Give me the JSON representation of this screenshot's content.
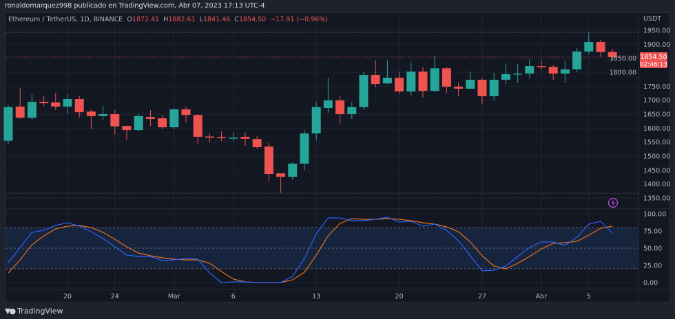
{
  "topbar": {
    "text": "ronaldomarquez998 publicado en TradingView.com, Abr 07, 2023 17:13 UTC-4"
  },
  "legend": {
    "symbol": "Ethereum / TetherUS, 1D, BINANCE",
    "o_label": "O",
    "o": "1872.41",
    "h_label": "H",
    "h": "1882.61",
    "l_label": "L",
    "l": "1841.46",
    "c_label": "C",
    "c": "1854.50",
    "change": "−17.91 (−0.96%)"
  },
  "colors": {
    "up": "#26a69a",
    "down": "#ef5350",
    "k_line": "#2962ff",
    "d_line": "#e8711a",
    "background": "#131722"
  },
  "price_axis": {
    "currency": "USDT",
    "labels": [
      "1950.00",
      "1900.00",
      "1850.00",
      "1800.00",
      "1750.00",
      "1700.00",
      "1650.00",
      "1600.00",
      "1550.00",
      "1500.00",
      "1450.00",
      "1400.00",
      "1350.00"
    ],
    "current_price": "1854.50",
    "countdown": "02:46:13"
  },
  "stoch_axis": {
    "labels": [
      "100.00",
      "75.00",
      "50.00",
      "25.00",
      "0.00"
    ]
  },
  "time_axis": {
    "labels": [
      "20",
      "24",
      "Mar",
      "6",
      "13",
      "20",
      "27",
      "Abr",
      "5"
    ]
  },
  "chart_data": {
    "type": "candlestick",
    "candles": [
      [
        1555,
        1682,
        1542,
        1675
      ],
      [
        1677,
        1743,
        1633,
        1637
      ],
      [
        1637,
        1721,
        1630,
        1694
      ],
      [
        1694,
        1714,
        1680,
        1689
      ],
      [
        1692,
        1726,
        1665,
        1677
      ],
      [
        1677,
        1721,
        1650,
        1704
      ],
      [
        1704,
        1716,
        1638,
        1657
      ],
      [
        1659,
        1667,
        1596,
        1643
      ],
      [
        1643,
        1680,
        1628,
        1650
      ],
      [
        1650,
        1665,
        1576,
        1606
      ],
      [
        1608,
        1608,
        1557,
        1593
      ],
      [
        1593,
        1652,
        1589,
        1643
      ],
      [
        1640,
        1665,
        1608,
        1633
      ],
      [
        1635,
        1647,
        1596,
        1603
      ],
      [
        1603,
        1670,
        1596,
        1667
      ],
      [
        1667,
        1677,
        1620,
        1647
      ],
      [
        1647,
        1650,
        1544,
        1569
      ],
      [
        1570,
        1581,
        1549,
        1566
      ],
      [
        1568,
        1588,
        1554,
        1564
      ],
      [
        1564,
        1583,
        1554,
        1566
      ],
      [
        1569,
        1585,
        1537,
        1562
      ],
      [
        1561,
        1571,
        1525,
        1532
      ],
      [
        1534,
        1547,
        1409,
        1436
      ],
      [
        1438,
        1438,
        1367,
        1426
      ],
      [
        1426,
        1478,
        1414,
        1473
      ],
      [
        1473,
        1593,
        1450,
        1581
      ],
      [
        1581,
        1692,
        1559,
        1675
      ],
      [
        1672,
        1780,
        1655,
        1699
      ],
      [
        1699,
        1716,
        1613,
        1650
      ],
      [
        1650,
        1692,
        1633,
        1675
      ],
      [
        1675,
        1800,
        1665,
        1790
      ],
      [
        1790,
        1842,
        1746,
        1758
      ],
      [
        1760,
        1842,
        1758,
        1780
      ],
      [
        1780,
        1802,
        1721,
        1731
      ],
      [
        1731,
        1834,
        1716,
        1802
      ],
      [
        1802,
        1819,
        1709,
        1733
      ],
      [
        1733,
        1859,
        1729,
        1814
      ],
      [
        1814,
        1819,
        1726,
        1748
      ],
      [
        1748,
        1763,
        1714,
        1741
      ],
      [
        1741,
        1802,
        1739,
        1773
      ],
      [
        1773,
        1780,
        1687,
        1714
      ],
      [
        1714,
        1797,
        1699,
        1773
      ],
      [
        1773,
        1830,
        1758,
        1793
      ],
      [
        1793,
        1830,
        1763,
        1795
      ],
      [
        1795,
        1847,
        1778,
        1822
      ],
      [
        1822,
        1842,
        1810,
        1819
      ],
      [
        1819,
        1825,
        1773,
        1795
      ],
      [
        1795,
        1842,
        1763,
        1810
      ],
      [
        1810,
        1886,
        1802,
        1874
      ],
      [
        1874,
        1942,
        1866,
        1908
      ],
      [
        1908,
        1916,
        1854,
        1872
      ],
      [
        1872.41,
        1882.61,
        1841.46,
        1854.5
      ]
    ],
    "ylim": [
      1320,
      1960
    ],
    "high_line": 1942,
    "low_line": 1367,
    "stoch": {
      "k": [
        29,
        51,
        73,
        76,
        83,
        87,
        82,
        74,
        64,
        52,
        40,
        38,
        38,
        32,
        33,
        35,
        34,
        14,
        0,
        1,
        1,
        0,
        0,
        0,
        9,
        35,
        71,
        94,
        94,
        90,
        90,
        92,
        95,
        88,
        89,
        82,
        85,
        76,
        61,
        39,
        17,
        18,
        24,
        38,
        51,
        59,
        59,
        54,
        66,
        85,
        89,
        72
      ],
      "d": [
        14,
        33,
        55,
        68,
        78,
        82,
        83,
        80,
        73,
        63,
        52,
        43,
        39,
        36,
        34,
        33,
        33,
        28,
        16,
        5,
        1,
        0,
        0,
        0,
        4,
        15,
        40,
        68,
        86,
        93,
        92,
        92,
        93,
        92,
        90,
        87,
        85,
        81,
        74,
        59,
        39,
        24,
        20,
        28,
        38,
        49,
        57,
        58,
        60,
        69,
        79,
        82
      ],
      "ylim": [
        0,
        100
      ],
      "bands": [
        20,
        50,
        80
      ]
    }
  },
  "footer": {
    "brand": "TradingView",
    "logo": "TV"
  }
}
